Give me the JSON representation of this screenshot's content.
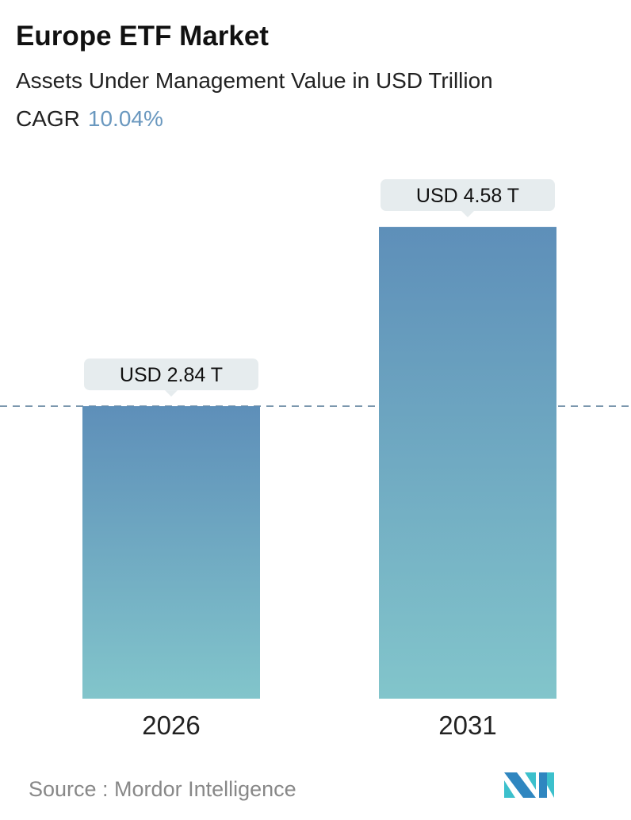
{
  "header": {
    "title": "Europe ETF Market",
    "subtitle": "Assets Under Management Value in USD Trillion",
    "cagr_label": "CAGR",
    "cagr_value": "10.04%"
  },
  "chart_data": {
    "type": "bar",
    "categories": [
      "2026",
      "2031"
    ],
    "values": [
      2.84,
      4.58
    ],
    "data_labels": [
      "USD 2.84 T",
      "USD 4.58 T"
    ],
    "title": "Europe ETF Market",
    "ylabel": "Assets Under Management Value in USD Trillion",
    "grid": false,
    "reference_line": 2.84,
    "colors": {
      "bar_top": "#5e8fb9",
      "bar_bottom": "#82c5cb",
      "label_bg": "#e6ecee",
      "cagr": "#6a98bf",
      "dash": "#5a7d99"
    }
  },
  "footer": {
    "source": "Source :  Mordor Intelligence",
    "logo_text": "Mordor Intelligence"
  }
}
